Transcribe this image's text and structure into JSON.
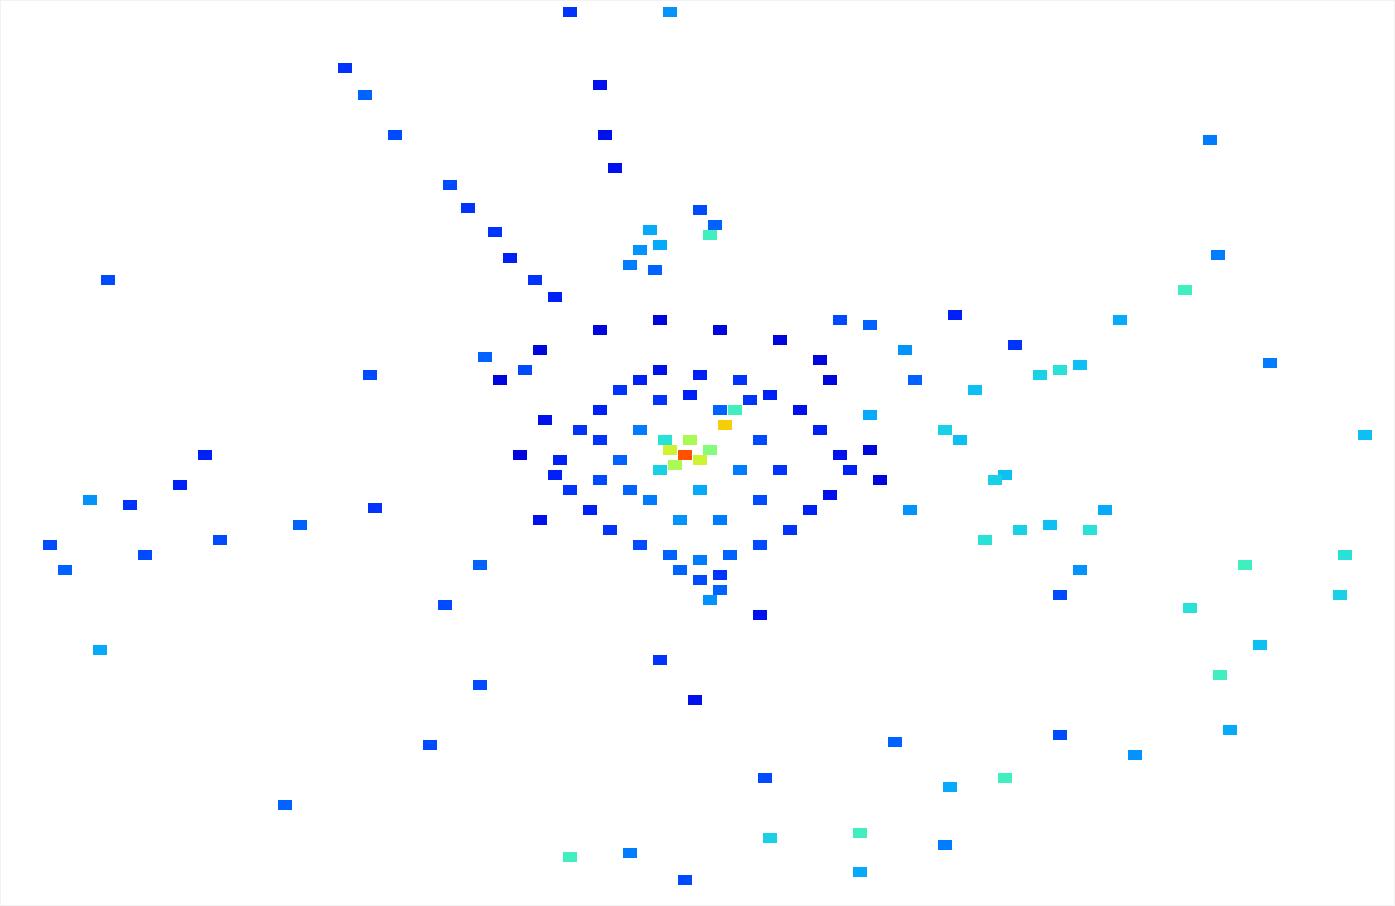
{
  "chart_data": {
    "type": "scatter",
    "tick_labels": false,
    "grid": false,
    "marker": "square",
    "xlim": [
      -685,
      710
    ],
    "ylim": [
      -451,
      455
    ],
    "zlim": [
      0,
      55
    ],
    "x": [
      0,
      -15,
      15,
      5,
      -10,
      25,
      40,
      50,
      -20,
      -25,
      -125,
      -105,
      -85,
      -65,
      -45,
      -25,
      15,
      55,
      85,
      115,
      135,
      155,
      165,
      145,
      125,
      105,
      75,
      45,
      15,
      -15,
      -45,
      -75,
      -95,
      -115,
      -130,
      -85,
      -65,
      -45,
      35,
      75,
      95,
      75,
      35,
      -5,
      -35,
      -55,
      15,
      55,
      65,
      -85,
      -5,
      15,
      35,
      -25,
      5,
      -145,
      -165,
      -140,
      145,
      185,
      195,
      -185,
      -145,
      -85,
      -25,
      35,
      95,
      135,
      -35,
      -45,
      -55,
      -30,
      -25,
      15,
      30,
      25,
      500,
      435,
      375,
      355,
      395,
      330,
      290,
      260,
      275,
      310,
      320,
      300,
      335,
      365,
      405,
      420,
      395,
      375,
      225,
      185,
      220,
      185,
      155,
      230,
      270,
      25,
      35,
      -205,
      -205,
      -240,
      -25,
      10,
      75,
      -385,
      -465,
      -540,
      -620,
      -310,
      -595,
      -585,
      -505,
      -480,
      -315,
      -200,
      -160,
      -635,
      -555,
      -577,
      -320,
      -290,
      -235,
      -217,
      -190,
      -175,
      -150,
      -130,
      -340,
      -115,
      -85,
      -80,
      -70,
      -15,
      -115,
      -55,
      85,
      175,
      260,
      265,
      320,
      535,
      545,
      575,
      505,
      560,
      655,
      660,
      680,
      585,
      525,
      533,
      450,
      375,
      210,
      80,
      0,
      175,
      -255,
      -400
    ],
    "y": [
      0,
      5,
      -5,
      15,
      -10,
      5,
      30,
      45,
      15,
      -15,
      -5,
      25,
      45,
      65,
      75,
      85,
      80,
      75,
      60,
      45,
      25,
      0,
      -15,
      -40,
      -55,
      -75,
      -90,
      -100,
      -105,
      -100,
      -90,
      -75,
      -55,
      -35,
      -20,
      -25,
      -5,
      25,
      45,
      15,
      -15,
      -45,
      -65,
      -65,
      -45,
      -35,
      -35,
      -15,
      55,
      15,
      -115,
      -125,
      -120,
      55,
      60,
      -65,
      0,
      35,
      75,
      5,
      -25,
      75,
      105,
      125,
      135,
      125,
      115,
      95,
      225,
      205,
      190,
      185,
      210,
      245,
      230,
      220,
      165,
      135,
      85,
      80,
      90,
      110,
      65,
      25,
      15,
      -25,
      -20,
      -85,
      -75,
      -70,
      -75,
      -55,
      -115,
      -140,
      -55,
      40,
      105,
      130,
      135,
      75,
      140,
      -145,
      -135,
      -110,
      -230,
      -150,
      -205,
      -245,
      -160,
      -70,
      -85,
      -100,
      -115,
      -53,
      -45,
      -195,
      -30,
      0,
      80,
      98,
      85,
      -90,
      -50,
      175,
      360,
      320,
      270,
      247,
      223,
      197,
      175,
      158,
      387,
      443,
      370,
      320,
      287,
      443,
      -402,
      -398,
      -383,
      -378,
      -390,
      -332,
      -323,
      -220,
      -275,
      -190,
      -153,
      -110,
      -140,
      -100,
      20,
      92,
      315,
      200,
      -300,
      -280,
      -287,
      -323,
      -425,
      -417,
      -290,
      -350
    ],
    "values": [
      50,
      38,
      38,
      36,
      36,
      34,
      42,
      30,
      28,
      26,
      10,
      12,
      10,
      12,
      10,
      8,
      10,
      12,
      10,
      8,
      10,
      8,
      10,
      8,
      10,
      12,
      14,
      16,
      18,
      16,
      14,
      12,
      10,
      12,
      10,
      14,
      16,
      18,
      16,
      14,
      12,
      14,
      18,
      20,
      18,
      16,
      22,
      18,
      12,
      12,
      16,
      14,
      12,
      12,
      10,
      8,
      6,
      8,
      6,
      6,
      6,
      6,
      6,
      6,
      6,
      6,
      6,
      6,
      22,
      20,
      18,
      16,
      22,
      14,
      16,
      30,
      30,
      22,
      28,
      26,
      24,
      12,
      24,
      26,
      24,
      26,
      24,
      28,
      26,
      24,
      28,
      22,
      20,
      14,
      20,
      22,
      20,
      16,
      14,
      16,
      10,
      20,
      16,
      16,
      14,
      14,
      12,
      8,
      8,
      16,
      14,
      14,
      16,
      12,
      20,
      22,
      10,
      10,
      14,
      16,
      14,
      14,
      12,
      14,
      16,
      14,
      14,
      12,
      12,
      10,
      12,
      10,
      12,
      12,
      8,
      8,
      8,
      20,
      30,
      18,
      26,
      30,
      18,
      22,
      30,
      30,
      22,
      24,
      28,
      30,
      26,
      28,
      24,
      18,
      18,
      18,
      20,
      14,
      16,
      14,
      14,
      22,
      14,
      16
    ]
  }
}
